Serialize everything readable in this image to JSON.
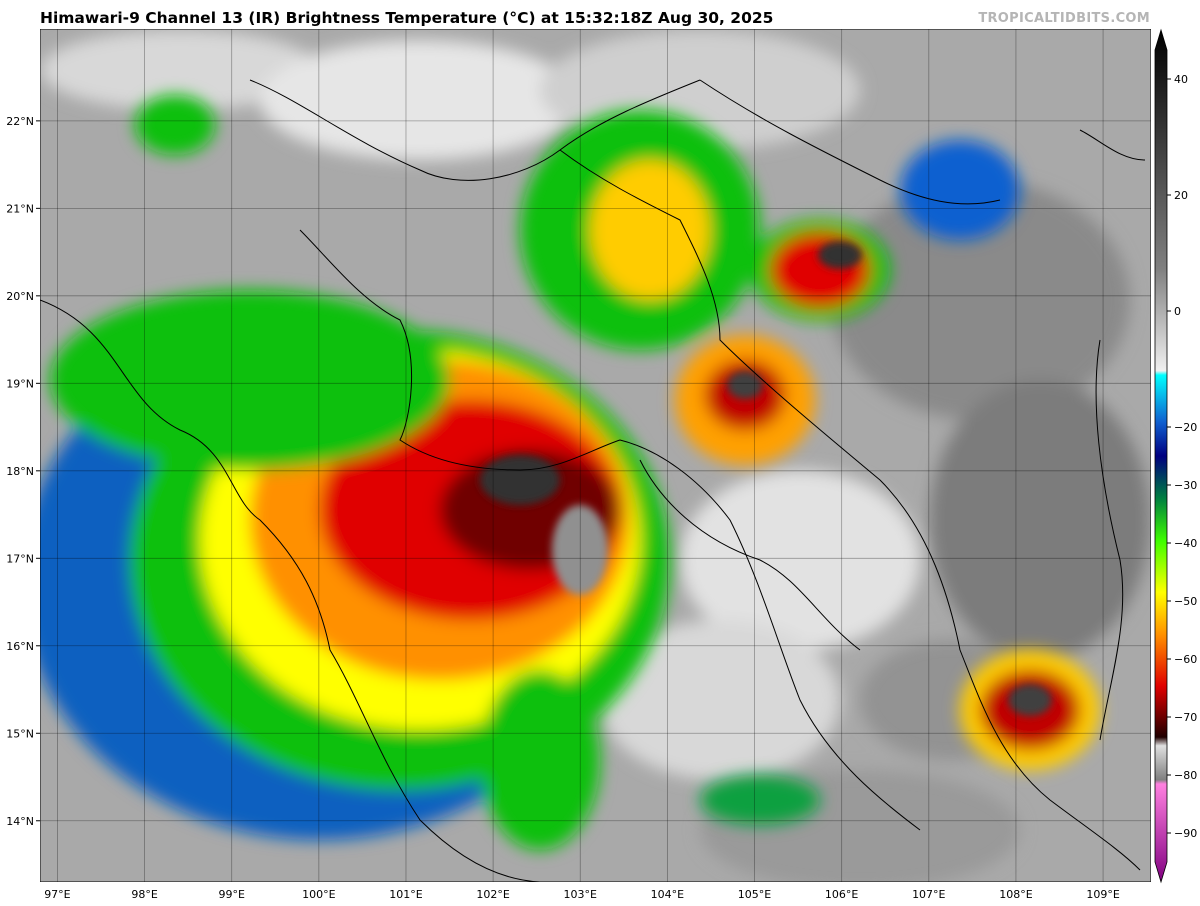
{
  "header": {
    "title": "Himawari-9 Channel 13 (IR) Brightness Temperature (°C) at 15:32:18Z Aug 30, 2025",
    "credit": "TROPICALTIDBITS.COM"
  },
  "map": {
    "lon_labels": [
      "97°E",
      "98°E",
      "99°E",
      "100°E",
      "101°E",
      "102°E",
      "103°E",
      "104°E",
      "105°E",
      "106°E",
      "107°E",
      "108°E",
      "109°E"
    ],
    "lat_labels": [
      "22°N",
      "21°N",
      "20°N",
      "19°N",
      "18°N",
      "17°N",
      "16°N",
      "15°N",
      "14°N"
    ],
    "lon_range": [
      96.8,
      109.55
    ],
    "lat_range": [
      13.3,
      23.05
    ]
  },
  "colorbar": {
    "labels": [
      "40",
      "20",
      "0",
      "−20",
      "−30",
      "−40",
      "−50",
      "−60",
      "−70",
      "−80",
      "−90"
    ],
    "values": [
      40,
      20,
      0,
      -20,
      -30,
      -40,
      -50,
      -60,
      -70,
      -80,
      -90
    ],
    "range": [
      -95,
      45
    ]
  },
  "colors": {
    "warm_gray": "#808080",
    "cold_cyan": "#00ffff",
    "blue": "#1010a0",
    "green": "#10c010",
    "yellow": "#ffff00",
    "orange": "#ff9000",
    "red": "#e00000",
    "darkred": "#400000",
    "magenta": "#e060e0"
  }
}
